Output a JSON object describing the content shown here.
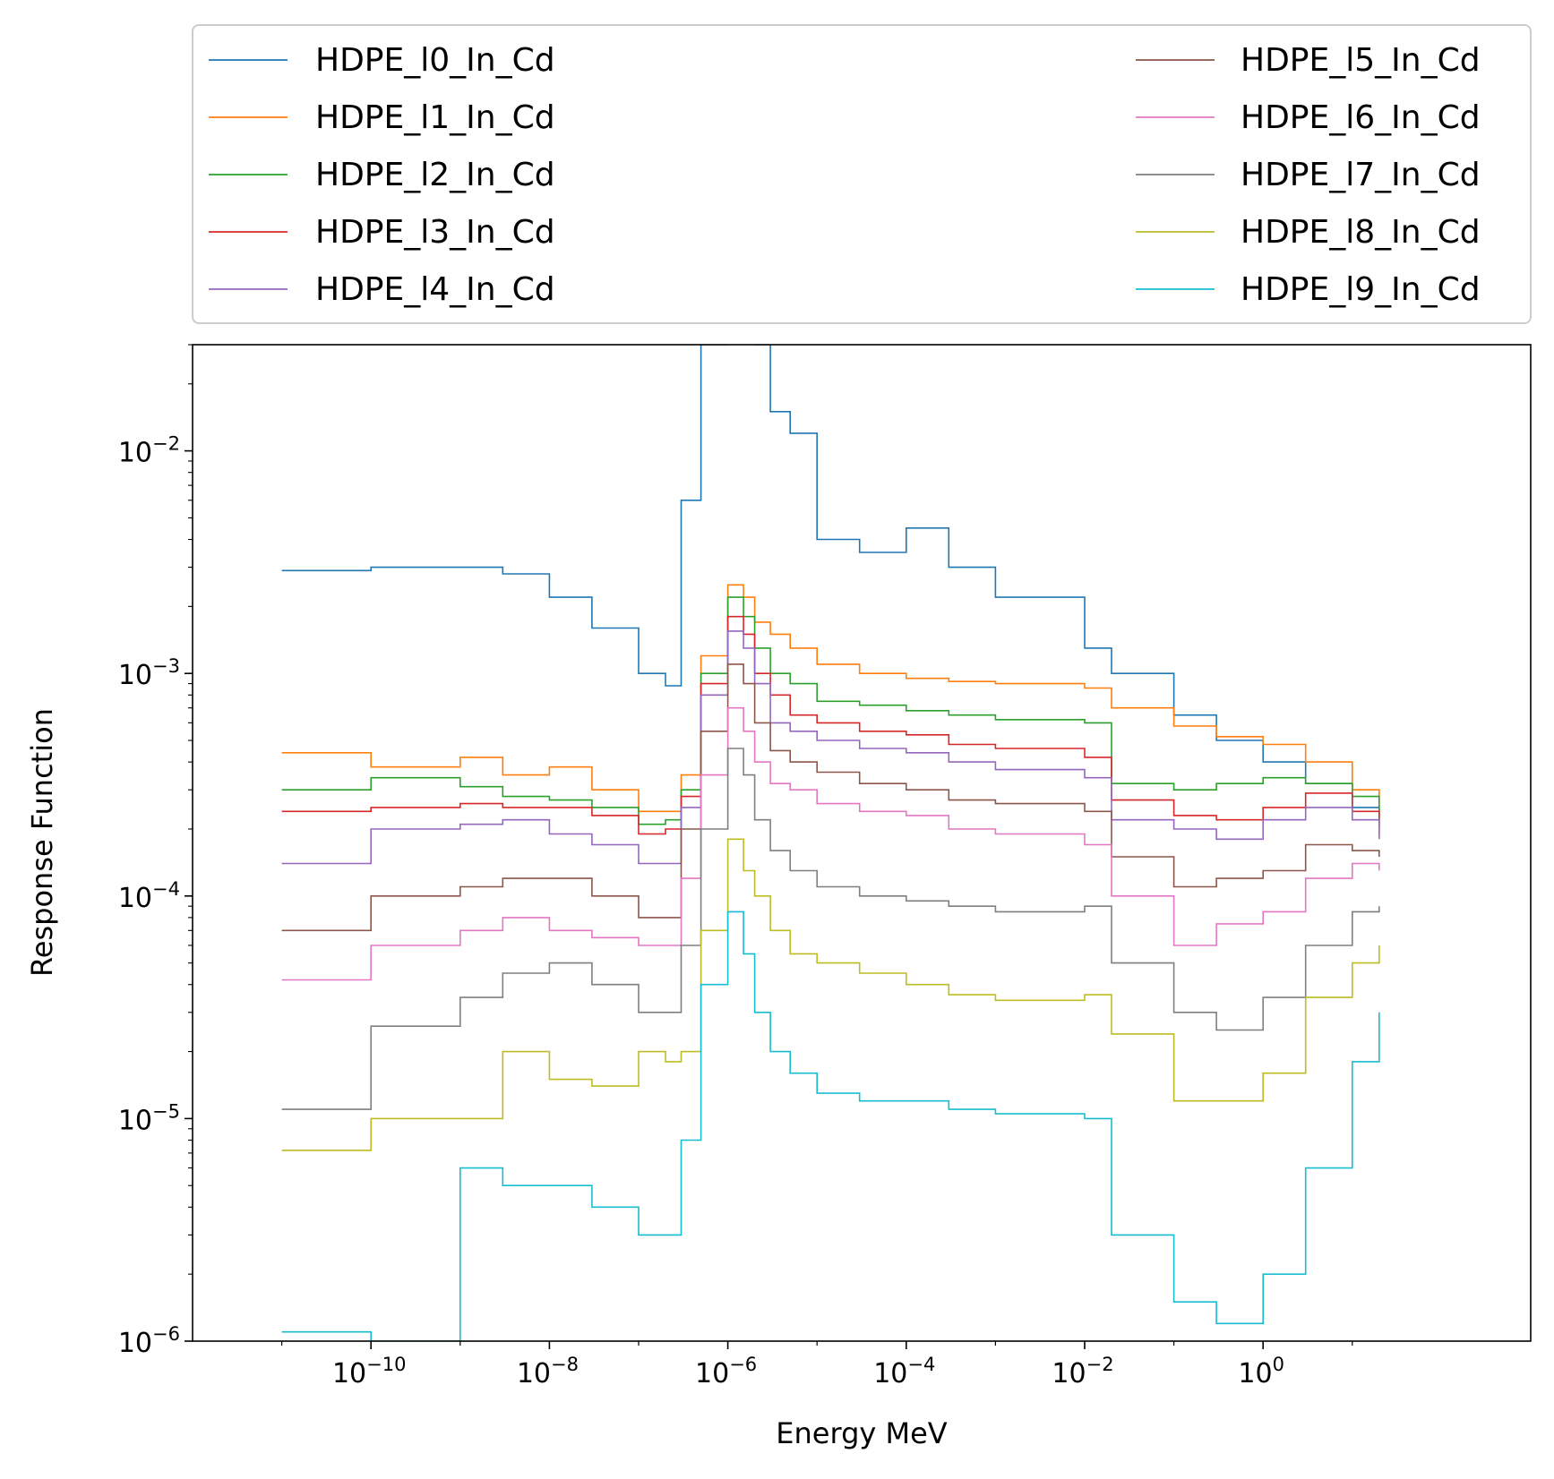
{
  "chart_data": {
    "type": "line",
    "title": "",
    "xlabel": "Energy MeV",
    "ylabel": "Response Function",
    "x_scale": "log",
    "y_scale": "log",
    "xlim": [
      1e-12,
      1000
    ],
    "ylim": [
      1e-06,
      0.03
    ],
    "x_ticks": [
      {
        "value": 1e-10,
        "base": "10",
        "exp": "−10"
      },
      {
        "value": 1e-08,
        "base": "10",
        "exp": "−8"
      },
      {
        "value": 1e-06,
        "base": "10",
        "exp": "−6"
      },
      {
        "value": 0.0001,
        "base": "10",
        "exp": "−4"
      },
      {
        "value": 0.01,
        "base": "10",
        "exp": "−2"
      },
      {
        "value": 1,
        "base": "10",
        "exp": "0"
      }
    ],
    "y_ticks": [
      {
        "value": 1e-06,
        "base": "10",
        "exp": "−6"
      },
      {
        "value": 1e-05,
        "base": "10",
        "exp": "−5"
      },
      {
        "value": 0.0001,
        "base": "10",
        "exp": "−4"
      },
      {
        "value": 0.001,
        "base": "10",
        "exp": "−3"
      },
      {
        "value": 0.01,
        "base": "10",
        "exp": "−2"
      }
    ],
    "grid": false,
    "legend_position": "top, above plot, 2 columns",
    "step_style": "post",
    "x": [
      1e-11,
      1e-10,
      1e-09,
      3e-09,
      1e-08,
      3e-08,
      1e-07,
      2e-07,
      3e-07,
      5e-07,
      1e-06,
      1.5e-06,
      2e-06,
      3e-06,
      5e-06,
      1e-05,
      3e-05,
      0.0001,
      0.0003,
      0.001,
      0.01,
      0.02,
      0.1,
      0.3,
      1,
      3,
      10,
      20
    ],
    "series": [
      {
        "name": "HDPE_l0_In_Cd",
        "color": "#1f77b4",
        "values": [
          0.0029,
          0.003,
          0.003,
          0.0028,
          0.0022,
          0.0016,
          0.001,
          0.00088,
          0.006,
          0.03,
          0.05,
          0.04,
          0.03,
          0.015,
          0.012,
          0.004,
          0.0035,
          0.0045,
          0.003,
          0.0022,
          0.0013,
          0.001,
          0.00065,
          0.0005,
          0.0004,
          0.00032,
          0.00025,
          0.0002
        ]
      },
      {
        "name": "HDPE_l1_In_Cd",
        "color": "#ff7f0e",
        "values": [
          0.00044,
          0.00038,
          0.00042,
          0.00035,
          0.00038,
          0.0003,
          0.00024,
          0.00024,
          0.00035,
          0.0012,
          0.0025,
          0.0022,
          0.0017,
          0.0015,
          0.0013,
          0.0011,
          0.001,
          0.00095,
          0.00092,
          0.0009,
          0.00086,
          0.0007,
          0.00058,
          0.00052,
          0.00048,
          0.0004,
          0.0003,
          0.00023
        ]
      },
      {
        "name": "HDPE_l2_In_Cd",
        "color": "#2ca02c",
        "values": [
          0.0003,
          0.00034,
          0.00031,
          0.00028,
          0.00027,
          0.00025,
          0.00021,
          0.00022,
          0.0003,
          0.001,
          0.0022,
          0.0018,
          0.0013,
          0.001,
          0.0009,
          0.00075,
          0.00072,
          0.00068,
          0.00065,
          0.00062,
          0.0006,
          0.00032,
          0.0003,
          0.00032,
          0.00034,
          0.00032,
          0.00028,
          0.00021
        ]
      },
      {
        "name": "HDPE_l3_In_Cd",
        "color": "#d62728",
        "values": [
          0.00024,
          0.00025,
          0.00026,
          0.00025,
          0.00025,
          0.00023,
          0.00019,
          0.0002,
          0.00028,
          0.0009,
          0.0018,
          0.0015,
          0.001,
          0.0008,
          0.00065,
          0.0006,
          0.00055,
          0.00053,
          0.00048,
          0.00046,
          0.00042,
          0.00027,
          0.00023,
          0.00022,
          0.00025,
          0.00029,
          0.00024,
          0.00019
        ]
      },
      {
        "name": "HDPE_l4_In_Cd",
        "color": "#9467bd",
        "values": [
          0.00014,
          0.0002,
          0.00021,
          0.00022,
          0.00019,
          0.00017,
          0.00014,
          0.00014,
          0.00025,
          0.0008,
          0.00155,
          0.0013,
          0.0009,
          0.0006,
          0.00055,
          0.0005,
          0.00046,
          0.00044,
          0.0004,
          0.00037,
          0.00034,
          0.00022,
          0.0002,
          0.00018,
          0.00022,
          0.00025,
          0.00022,
          0.00018
        ]
      },
      {
        "name": "HDPE_l5_In_Cd",
        "color": "#8c564b",
        "values": [
          7e-05,
          0.0001,
          0.00011,
          0.00012,
          0.00012,
          0.0001,
          8e-05,
          8e-05,
          0.0002,
          0.00055,
          0.0011,
          0.0009,
          0.0006,
          0.00045,
          0.0004,
          0.00036,
          0.00032,
          0.0003,
          0.00027,
          0.00026,
          0.00024,
          0.00015,
          0.00011,
          0.00012,
          0.00013,
          0.00017,
          0.00016,
          0.00015
        ]
      },
      {
        "name": "HDPE_l6_In_Cd",
        "color": "#e377c2",
        "values": [
          4.2e-05,
          6e-05,
          7e-05,
          8e-05,
          7e-05,
          6.5e-05,
          6e-05,
          6e-05,
          0.00012,
          0.00035,
          0.0007,
          0.00055,
          0.0004,
          0.00032,
          0.0003,
          0.00026,
          0.00024,
          0.00023,
          0.0002,
          0.00019,
          0.00017,
          0.0001,
          6e-05,
          7.5e-05,
          8.5e-05,
          0.00012,
          0.00014,
          0.00013
        ]
      },
      {
        "name": "HDPE_l7_In_Cd",
        "color": "#7f7f7f",
        "values": [
          1.1e-05,
          2.6e-05,
          3.5e-05,
          4.5e-05,
          5e-05,
          4e-05,
          3e-05,
          3e-05,
          6e-05,
          0.0002,
          0.00046,
          0.00035,
          0.00022,
          0.00016,
          0.00013,
          0.00011,
          0.0001,
          9.5e-05,
          9e-05,
          8.5e-05,
          9e-05,
          5e-05,
          3e-05,
          2.5e-05,
          3.5e-05,
          6e-05,
          8.5e-05,
          9e-05
        ]
      },
      {
        "name": "HDPE_l8_In_Cd",
        "color": "#bcbd22",
        "values": [
          7.2e-06,
          1e-05,
          1e-05,
          2e-05,
          1.5e-05,
          1.4e-05,
          2e-05,
          1.8e-05,
          2e-05,
          7e-05,
          0.00018,
          0.00013,
          0.0001,
          7e-05,
          5.5e-05,
          5e-05,
          4.5e-05,
          4e-05,
          3.6e-05,
          3.4e-05,
          3.6e-05,
          2.4e-05,
          1.2e-05,
          1.2e-05,
          1.6e-05,
          3.5e-05,
          5e-05,
          6e-05
        ]
      },
      {
        "name": "HDPE_l9_In_Cd",
        "color": "#17becf",
        "values": [
          1.1e-06,
          1e-06,
          6e-06,
          5e-06,
          5e-06,
          4e-06,
          3e-06,
          3e-06,
          8e-06,
          4e-05,
          8.5e-05,
          5.5e-05,
          3e-05,
          2e-05,
          1.6e-05,
          1.3e-05,
          1.2e-05,
          1.2e-05,
          1.1e-05,
          1.05e-05,
          1e-05,
          3e-06,
          1.5e-06,
          1.2e-06,
          2e-06,
          6e-06,
          1.8e-05,
          3e-05
        ]
      }
    ]
  }
}
